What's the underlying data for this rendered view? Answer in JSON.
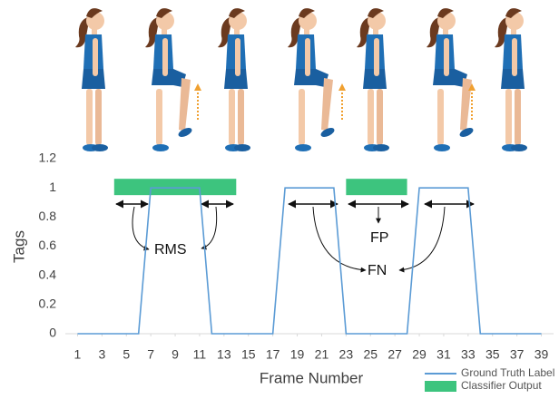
{
  "chart_data": {
    "type": "line",
    "x": [
      1,
      2,
      3,
      4,
      5,
      6,
      7,
      8,
      9,
      10,
      11,
      12,
      13,
      14,
      15,
      16,
      17,
      18,
      19,
      20,
      21,
      22,
      23,
      24,
      25,
      26,
      27,
      28,
      29,
      30,
      31,
      32,
      33,
      34,
      35,
      36,
      37,
      38,
      39
    ],
    "series": [
      {
        "name": "Ground Truth Label",
        "color": "#5b9bd5",
        "values": [
          0,
          0,
          0,
          0,
          0,
          0,
          1,
          1,
          1,
          1,
          1,
          0,
          0,
          0,
          0,
          0,
          0,
          1,
          1,
          1,
          1,
          1,
          0,
          0,
          0,
          0,
          0,
          0,
          1,
          1,
          1,
          1,
          1,
          0,
          0,
          0,
          0,
          0,
          0
        ]
      }
    ],
    "classifier_output": {
      "name": "Classifier Output",
      "color": "#3dc47e",
      "value": 1,
      "segments": [
        [
          4,
          14
        ],
        [
          23,
          28
        ]
      ]
    },
    "xlabel": "Frame Number",
    "ylabel": "Tags",
    "xlim": [
      0,
      40
    ],
    "xticks": [
      1,
      3,
      5,
      7,
      9,
      11,
      13,
      15,
      17,
      19,
      21,
      23,
      25,
      27,
      29,
      31,
      33,
      35,
      37,
      39
    ],
    "ylim": [
      0,
      1.2
    ],
    "yticks": [
      0,
      0.2,
      0.4,
      0.6,
      0.8,
      1,
      1.2
    ],
    "annotations": [
      "RMS",
      "FP",
      "FN"
    ]
  }
}
